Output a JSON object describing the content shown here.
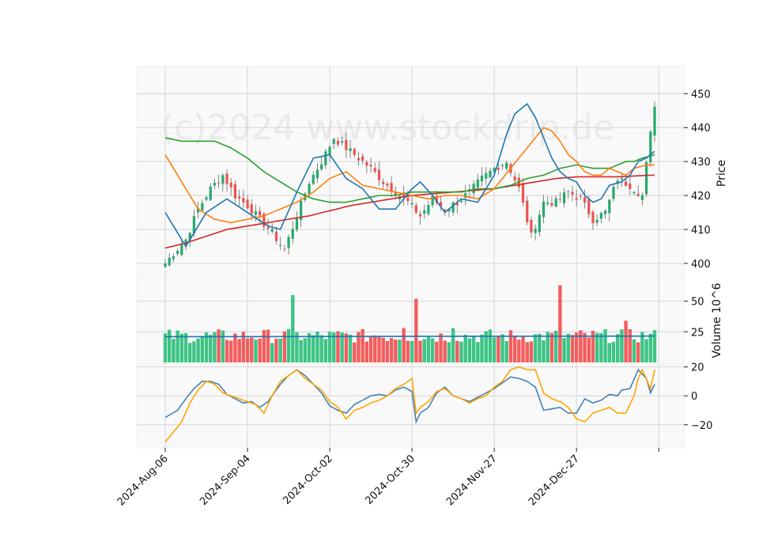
{
  "chart_data": {
    "type": "candlestick",
    "watermark": "(c)2024 www.stockdrip.de",
    "colors": {
      "up": "#26a96c",
      "down": "#ef5350",
      "volume_up": "#3dc486",
      "volume_down": "#f25e5e",
      "volume_avg": "#1f77b4",
      "ma_short": "#1f77b4",
      "ma_mid": "#ff7f0e",
      "ma_long": "#2ca02c",
      "ma_longest": "#d62728",
      "osc_a": "#4682b4",
      "osc_b": "#ffa500",
      "grid": "#d6d6d6",
      "panel_bg": "#f9f9f9"
    },
    "x_labels": [
      "2024-Aug-06",
      "2024-Sep-04",
      "2024-Oct-02",
      "2024-Oct-30",
      "2024-Nov-27",
      "2024-Dec-27"
    ],
    "label_positions": [
      0,
      20,
      40,
      60,
      80,
      100
    ],
    "num_bars": 120,
    "price_panel": {
      "ylabel": "Price",
      "ylim": [
        396,
        458
      ],
      "ticks": [
        "400",
        "410",
        "420",
        "430",
        "440",
        "450"
      ],
      "tick_values": [
        400,
        410,
        420,
        430,
        440,
        450
      ],
      "close_anchors": [
        [
          0,
          400
        ],
        [
          2,
          403
        ],
        [
          5,
          407
        ],
        [
          8,
          416
        ],
        [
          11,
          422
        ],
        [
          14,
          426
        ],
        [
          17,
          420
        ],
        [
          20,
          417
        ],
        [
          23,
          413
        ],
        [
          26,
          409
        ],
        [
          29,
          404
        ],
        [
          32,
          414
        ],
        [
          35,
          424
        ],
        [
          38,
          430
        ],
        [
          41,
          437
        ],
        [
          44,
          434
        ],
        [
          47,
          431
        ],
        [
          50,
          428
        ],
        [
          53,
          424
        ],
        [
          56,
          421
        ],
        [
          59,
          418
        ],
        [
          62,
          414
        ],
        [
          65,
          419
        ],
        [
          68,
          416
        ],
        [
          71,
          418
        ],
        [
          74,
          421
        ],
        [
          77,
          425
        ],
        [
          80,
          428
        ],
        [
          83,
          430
        ],
        [
          86,
          422
        ],
        [
          89,
          408
        ],
        [
          92,
          418
        ],
        [
          95,
          418
        ],
        [
          98,
          421
        ],
        [
          101,
          419
        ],
        [
          104,
          413
        ],
        [
          107,
          415
        ],
        [
          110,
          425
        ],
        [
          113,
          423
        ],
        [
          116,
          420
        ],
        [
          119,
          447
        ]
      ],
      "ma_short": [
        [
          0,
          415
        ],
        [
          5,
          405
        ],
        [
          10,
          415
        ],
        [
          15,
          419
        ],
        [
          20,
          415
        ],
        [
          25,
          411
        ],
        [
          28,
          410
        ],
        [
          32,
          421
        ],
        [
          36,
          431
        ],
        [
          40,
          432
        ],
        [
          44,
          425
        ],
        [
          48,
          422
        ],
        [
          52,
          416
        ],
        [
          56,
          416
        ],
        [
          60,
          422
        ],
        [
          62,
          424
        ],
        [
          65,
          420
        ],
        [
          68,
          415
        ],
        [
          72,
          419
        ],
        [
          76,
          418
        ],
        [
          80,
          426
        ],
        [
          83,
          438
        ],
        [
          85,
          444
        ],
        [
          88,
          447
        ],
        [
          90,
          443
        ],
        [
          92,
          437
        ],
        [
          94,
          431
        ],
        [
          96,
          427
        ],
        [
          98,
          425
        ],
        [
          100,
          424
        ],
        [
          102,
          420
        ],
        [
          104,
          418
        ],
        [
          106,
          419
        ],
        [
          108,
          423
        ],
        [
          111,
          424
        ],
        [
          113,
          426
        ],
        [
          115,
          430
        ],
        [
          117,
          431
        ],
        [
          119,
          433
        ]
      ],
      "ma_mid": [
        [
          0,
          432
        ],
        [
          4,
          424
        ],
        [
          8,
          416
        ],
        [
          12,
          413
        ],
        [
          16,
          412
        ],
        [
          20,
          413
        ],
        [
          24,
          414
        ],
        [
          28,
          416
        ],
        [
          32,
          418
        ],
        [
          36,
          421
        ],
        [
          40,
          425
        ],
        [
          44,
          427
        ],
        [
          48,
          423
        ],
        [
          52,
          422
        ],
        [
          56,
          421
        ],
        [
          60,
          420
        ],
        [
          64,
          419
        ],
        [
          68,
          420
        ],
        [
          72,
          420
        ],
        [
          76,
          419
        ],
        [
          80,
          422
        ],
        [
          84,
          428
        ],
        [
          88,
          434
        ],
        [
          90,
          437
        ],
        [
          92,
          440
        ],
        [
          94,
          439
        ],
        [
          96,
          436
        ],
        [
          98,
          432
        ],
        [
          100,
          430
        ],
        [
          102,
          427
        ],
        [
          104,
          426
        ],
        [
          106,
          426
        ],
        [
          108,
          428
        ],
        [
          110,
          427
        ],
        [
          112,
          426
        ],
        [
          114,
          428
        ],
        [
          117,
          429
        ],
        [
          119,
          429
        ]
      ],
      "ma_long": [
        [
          0,
          437
        ],
        [
          4,
          436
        ],
        [
          8,
          436
        ],
        [
          12,
          436
        ],
        [
          16,
          434
        ],
        [
          20,
          431
        ],
        [
          24,
          427
        ],
        [
          28,
          424
        ],
        [
          32,
          421
        ],
        [
          36,
          419
        ],
        [
          40,
          418
        ],
        [
          44,
          418
        ],
        [
          48,
          419
        ],
        [
          52,
          420
        ],
        [
          56,
          420
        ],
        [
          60,
          421
        ],
        [
          64,
          421
        ],
        [
          68,
          421
        ],
        [
          72,
          421
        ],
        [
          76,
          422
        ],
        [
          80,
          422
        ],
        [
          84,
          423
        ],
        [
          88,
          425
        ],
        [
          92,
          426
        ],
        [
          96,
          428
        ],
        [
          100,
          429
        ],
        [
          104,
          428
        ],
        [
          106,
          428
        ],
        [
          108,
          428
        ],
        [
          110,
          429
        ],
        [
          112,
          430
        ],
        [
          114,
          430
        ],
        [
          116,
          431
        ],
        [
          119,
          432
        ]
      ],
      "ma_longest": [
        [
          0,
          404.5
        ],
        [
          5,
          406
        ],
        [
          10,
          408
        ],
        [
          15,
          410
        ],
        [
          20,
          411
        ],
        [
          25,
          412
        ],
        [
          30,
          413
        ],
        [
          35,
          414
        ],
        [
          40,
          415.5
        ],
        [
          45,
          417
        ],
        [
          50,
          418
        ],
        [
          55,
          419
        ],
        [
          60,
          420
        ],
        [
          65,
          420.5
        ],
        [
          70,
          421
        ],
        [
          75,
          421.5
        ],
        [
          80,
          422
        ],
        [
          85,
          423
        ],
        [
          90,
          424
        ],
        [
          95,
          425
        ],
        [
          100,
          425.5
        ],
        [
          105,
          425.5
        ],
        [
          110,
          425.5
        ],
        [
          115,
          425.8
        ],
        [
          119,
          426
        ]
      ]
    },
    "volume_panel": {
      "ylabel": "Volume  10^6",
      "ylim": [
        0,
        62
      ],
      "ticks": [
        "25",
        "50"
      ],
      "tick_values": [
        25,
        50
      ],
      "base_volume": 21,
      "spikes": [
        [
          31,
          55
        ],
        [
          61,
          52
        ],
        [
          96,
          63
        ],
        [
          112,
          34
        ],
        [
          58,
          28
        ],
        [
          70,
          28
        ],
        [
          51,
          22
        ]
      ],
      "avg_level": 21
    },
    "oscillator_panel": {
      "ylim": [
        -36,
        22
      ],
      "ticks": [
        "−20",
        "0",
        "20"
      ],
      "tick_values": [
        -20,
        0,
        20
      ],
      "line_a": [
        [
          0,
          -15
        ],
        [
          3,
          -10
        ],
        [
          5,
          -2
        ],
        [
          7,
          5
        ],
        [
          9,
          10
        ],
        [
          11,
          10
        ],
        [
          13,
          8
        ],
        [
          15,
          1
        ],
        [
          17,
          -2
        ],
        [
          19,
          -5
        ],
        [
          21,
          -4
        ],
        [
          23,
          -8
        ],
        [
          25,
          -4
        ],
        [
          28,
          8
        ],
        [
          30,
          14
        ],
        [
          32,
          18
        ],
        [
          34,
          14
        ],
        [
          36,
          8
        ],
        [
          38,
          2
        ],
        [
          40,
          -7
        ],
        [
          42,
          -10
        ],
        [
          44,
          -12
        ],
        [
          46,
          -6
        ],
        [
          48,
          -3
        ],
        [
          50,
          0
        ],
        [
          52,
          1
        ],
        [
          54,
          0
        ],
        [
          56,
          4
        ],
        [
          58,
          6
        ],
        [
          60,
          3
        ],
        [
          61,
          -18
        ],
        [
          62,
          -12
        ],
        [
          64,
          -8
        ],
        [
          66,
          2
        ],
        [
          68,
          6
        ],
        [
          70,
          0
        ],
        [
          72,
          -2
        ],
        [
          74,
          -4
        ],
        [
          76,
          -1
        ],
        [
          78,
          2
        ],
        [
          80,
          5
        ],
        [
          82,
          9
        ],
        [
          84,
          13
        ],
        [
          86,
          12
        ],
        [
          88,
          10
        ],
        [
          90,
          6
        ],
        [
          92,
          -10
        ],
        [
          94,
          -9
        ],
        [
          96,
          -8
        ],
        [
          98,
          -12
        ],
        [
          100,
          -12
        ],
        [
          102,
          -2
        ],
        [
          104,
          -5
        ],
        [
          106,
          -3
        ],
        [
          108,
          1
        ],
        [
          110,
          0
        ],
        [
          111,
          4
        ],
        [
          113,
          5
        ],
        [
          115,
          18
        ],
        [
          117,
          12
        ],
        [
          118,
          2
        ],
        [
          119,
          8
        ]
      ],
      "line_b": [
        [
          0,
          -32
        ],
        [
          2,
          -25
        ],
        [
          4,
          -18
        ],
        [
          6,
          -5
        ],
        [
          8,
          4
        ],
        [
          10,
          10
        ],
        [
          12,
          8
        ],
        [
          14,
          2
        ],
        [
          16,
          0
        ],
        [
          18,
          -2
        ],
        [
          20,
          -4
        ],
        [
          22,
          -6
        ],
        [
          24,
          -12
        ],
        [
          26,
          0
        ],
        [
          28,
          10
        ],
        [
          30,
          14
        ],
        [
          32,
          18
        ],
        [
          34,
          12
        ],
        [
          36,
          8
        ],
        [
          38,
          4
        ],
        [
          40,
          -4
        ],
        [
          42,
          -8
        ],
        [
          44,
          -16
        ],
        [
          46,
          -10
        ],
        [
          48,
          -8
        ],
        [
          50,
          -5
        ],
        [
          52,
          -3
        ],
        [
          54,
          0
        ],
        [
          56,
          5
        ],
        [
          58,
          8
        ],
        [
          60,
          12
        ],
        [
          61,
          -12
        ],
        [
          62,
          -8
        ],
        [
          64,
          -4
        ],
        [
          66,
          3
        ],
        [
          68,
          5
        ],
        [
          70,
          0
        ],
        [
          72,
          -2
        ],
        [
          74,
          -5
        ],
        [
          76,
          -2
        ],
        [
          78,
          0
        ],
        [
          80,
          6
        ],
        [
          82,
          10
        ],
        [
          84,
          18
        ],
        [
          86,
          20
        ],
        [
          88,
          18
        ],
        [
          90,
          18
        ],
        [
          92,
          2
        ],
        [
          94,
          -2
        ],
        [
          96,
          -4
        ],
        [
          98,
          -8
        ],
        [
          100,
          -16
        ],
        [
          102,
          -18
        ],
        [
          104,
          -12
        ],
        [
          106,
          -10
        ],
        [
          108,
          -8
        ],
        [
          110,
          -12
        ],
        [
          112,
          -12
        ],
        [
          114,
          0
        ],
        [
          115,
          12
        ],
        [
          116,
          18
        ],
        [
          118,
          5
        ],
        [
          119,
          18
        ]
      ]
    }
  }
}
